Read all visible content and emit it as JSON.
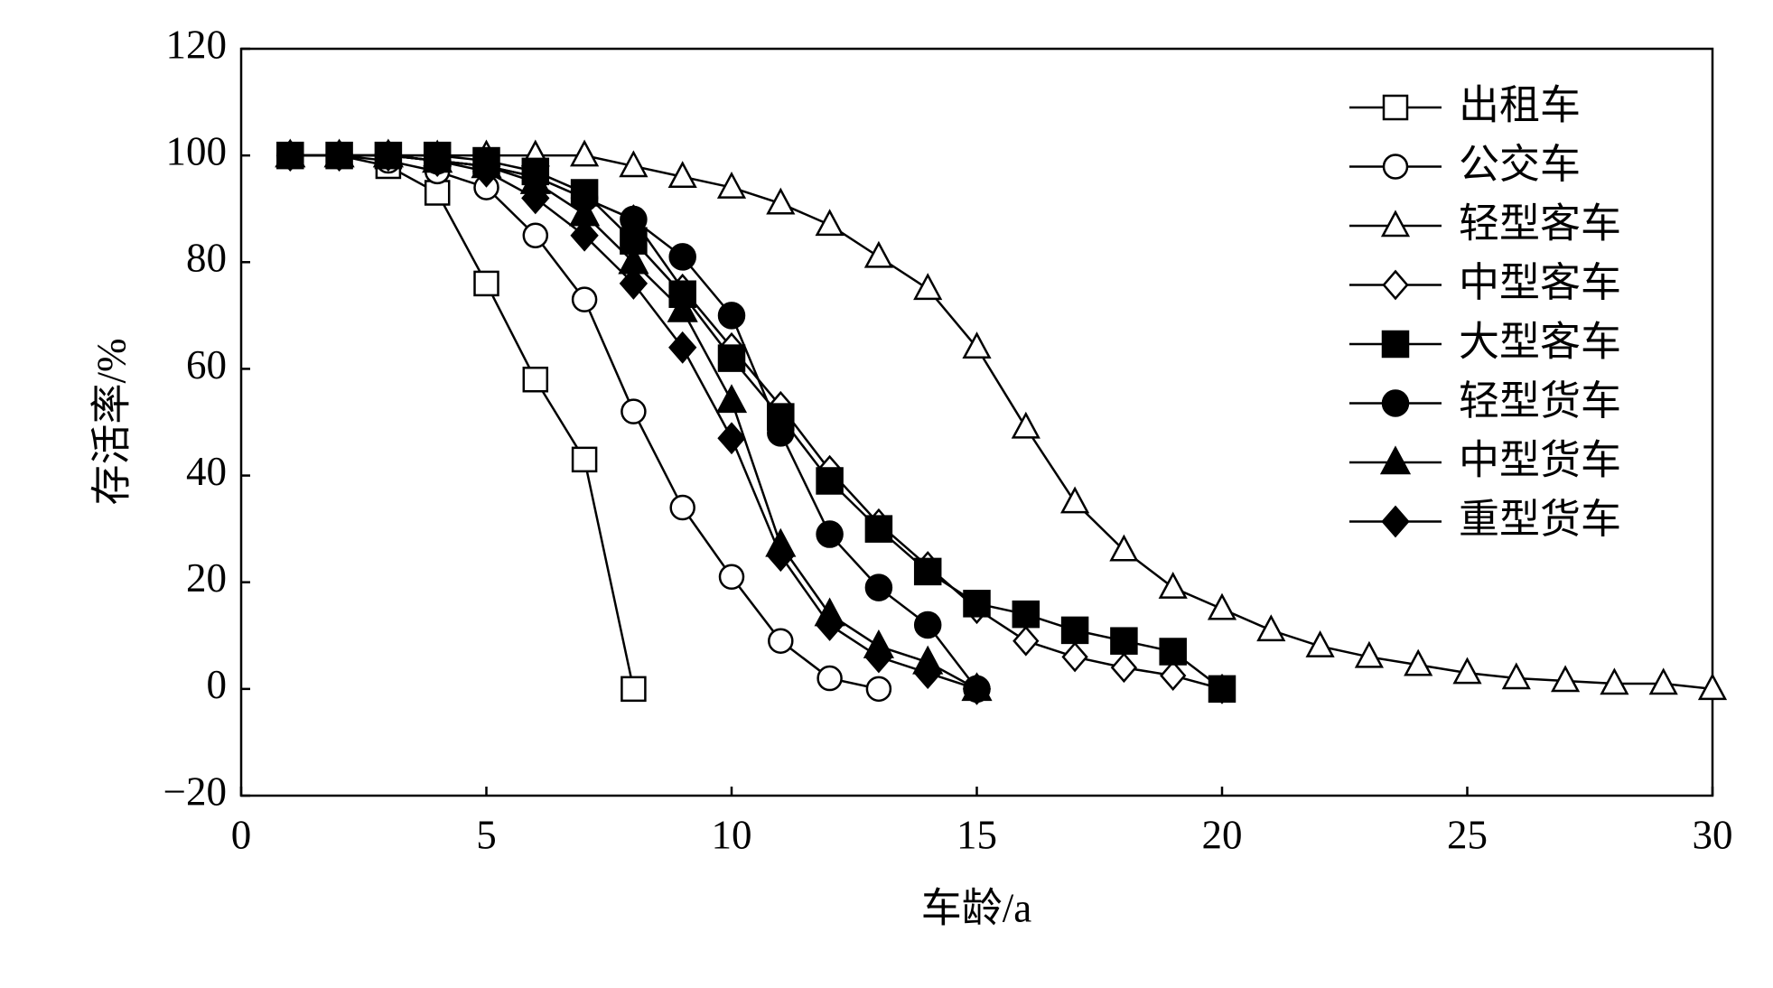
{
  "chart_data": {
    "type": "line",
    "xlabel": "车龄/a",
    "ylabel": "存活率/%",
    "xlim": [
      0,
      30
    ],
    "xticks": [
      0,
      5,
      10,
      15,
      20,
      25,
      30
    ],
    "ylim": [
      -20,
      120
    ],
    "yticks": [
      {
        "value": -20,
        "label": "−20"
      },
      0,
      20,
      40,
      60,
      80,
      100,
      120
    ],
    "legend": "upper right",
    "series": [
      {
        "name": "出租车",
        "marker": "square",
        "filled": false,
        "color": "#000000",
        "x": [
          1,
          2,
          3,
          4,
          5,
          6,
          7,
          8
        ],
        "values": [
          100,
          100,
          98,
          93,
          76,
          58,
          43,
          0
        ]
      },
      {
        "name": "公交车",
        "marker": "circle",
        "filled": false,
        "color": "#000000",
        "x": [
          1,
          2,
          3,
          4,
          5,
          6,
          7,
          8,
          9,
          10,
          11,
          12,
          13
        ],
        "values": [
          100,
          100,
          99,
          97,
          94,
          85,
          73,
          52,
          34,
          21,
          9,
          2,
          0
        ]
      },
      {
        "name": "轻型客车",
        "marker": "triangle",
        "filled": false,
        "color": "#000000",
        "x": [
          1,
          2,
          3,
          4,
          5,
          6,
          7,
          8,
          9,
          10,
          11,
          12,
          13,
          14,
          15,
          16,
          17,
          18,
          19,
          20,
          21,
          22,
          23,
          24,
          25,
          26,
          27,
          28,
          29,
          30
        ],
        "values": [
          100,
          100,
          100,
          100,
          100,
          100,
          100,
          98,
          96,
          94,
          91,
          87,
          81,
          75,
          64,
          49,
          35,
          26,
          19,
          15,
          11,
          8,
          6,
          4.5,
          3,
          2,
          1.5,
          1,
          1,
          0
        ]
      },
      {
        "name": "中型客车",
        "marker": "diamond",
        "filled": false,
        "color": "#000000",
        "x": [
          1,
          2,
          3,
          4,
          5,
          6,
          7,
          8,
          9,
          10,
          11,
          12,
          13,
          14,
          15,
          16,
          17,
          18,
          19,
          20
        ],
        "values": [
          100,
          100,
          100,
          99,
          98,
          96,
          92,
          88,
          75,
          64,
          53,
          41,
          31,
          23,
          15,
          9,
          6,
          4,
          2.5,
          0
        ]
      },
      {
        "name": "大型客车",
        "marker": "square",
        "filled": true,
        "color": "#000000",
        "x": [
          1,
          2,
          3,
          4,
          5,
          6,
          7,
          8,
          9,
          10,
          11,
          12,
          13,
          14,
          15,
          16,
          17,
          18,
          19,
          20
        ],
        "values": [
          100,
          100,
          100,
          100,
          99,
          97,
          93,
          84,
          74,
          62,
          51,
          39,
          30,
          22,
          16,
          14,
          11,
          9,
          7,
          0
        ]
      },
      {
        "name": "轻型货车",
        "marker": "circle",
        "filled": true,
        "color": "#000000",
        "x": [
          1,
          2,
          3,
          4,
          5,
          6,
          7,
          8,
          9,
          10,
          11,
          12,
          13,
          14,
          15
        ],
        "values": [
          100,
          100,
          100,
          99,
          98,
          96,
          92,
          88,
          81,
          70,
          48,
          29,
          19,
          12,
          0
        ]
      },
      {
        "name": "中型货车",
        "marker": "triangle",
        "filled": true,
        "color": "#000000",
        "x": [
          1,
          2,
          3,
          4,
          5,
          6,
          7,
          8,
          9,
          10,
          11,
          12,
          13,
          14,
          15
        ],
        "values": [
          100,
          100,
          100,
          99,
          98,
          95,
          89,
          80,
          71,
          54,
          27,
          14,
          8,
          5,
          0
        ]
      },
      {
        "name": "重型货车",
        "marker": "diamond",
        "filled": true,
        "color": "#000000",
        "x": [
          1,
          2,
          3,
          4,
          5,
          6,
          7,
          8,
          9,
          10,
          11,
          12,
          13,
          14,
          15
        ],
        "values": [
          100,
          100,
          100,
          99,
          97,
          92,
          85,
          76,
          64,
          47,
          25,
          12,
          6,
          3,
          0
        ]
      }
    ]
  }
}
